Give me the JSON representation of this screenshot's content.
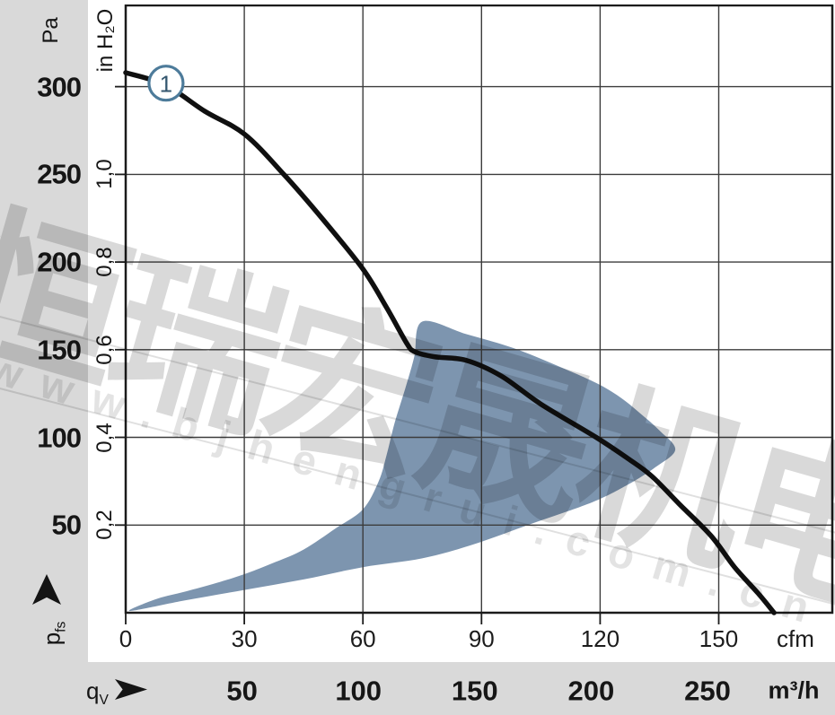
{
  "y_axis": {
    "unit_primary": "Pa",
    "ticks_pa": [
      "300",
      "250",
      "200",
      "150",
      "100",
      "50"
    ],
    "unit_secondary": "in H₂O",
    "ticks_inh2o": [
      "1,0",
      "0,8",
      "0,6",
      "0,4",
      "0,2"
    ],
    "quantity": {
      "base": "p",
      "sub": "fs"
    }
  },
  "x_axis": {
    "unit_primary": "cfm",
    "ticks_cfm": [
      "0",
      "30",
      "60",
      "90",
      "120",
      "150"
    ],
    "unit_secondary": "m³/h",
    "ticks_m3h": [
      "50",
      "100",
      "150",
      "200",
      "250"
    ],
    "quantity": {
      "base": "q",
      "sub": "V"
    }
  },
  "watermark": {
    "company": "恒瑞宏晟机电",
    "url": "www.bjhengrui.com.cn"
  },
  "chart_data": {
    "type": "line",
    "x_unit": "cfm",
    "x_unit_secondary": "m³/h",
    "y_unit": "Pa",
    "y_unit_secondary": "in H₂O",
    "x_range_cfm": [
      0,
      179
    ],
    "y_range_pa": [
      0,
      347
    ],
    "x_ticks_cfm": [
      0,
      30,
      60,
      90,
      120,
      150
    ],
    "x_ticks_m3h": [
      50,
      100,
      150,
      200,
      250
    ],
    "y_ticks_pa": [
      300,
      250,
      200,
      150,
      100,
      50
    ],
    "y_ticks_inh2o": [
      1.0,
      0.8,
      0.6,
      0.4,
      0.2
    ],
    "grid": true,
    "series": [
      {
        "name": "1",
        "points": [
          [
            0,
            308
          ],
          [
            10,
            301
          ],
          [
            20,
            286
          ],
          [
            30,
            273
          ],
          [
            40,
            250
          ],
          [
            50,
            224
          ],
          [
            60,
            196
          ],
          [
            66,
            174
          ],
          [
            71,
            154
          ],
          [
            73,
            149
          ],
          [
            78,
            146
          ],
          [
            86,
            144
          ],
          [
            95,
            135
          ],
          [
            105,
            119
          ],
          [
            119,
            100
          ],
          [
            127,
            88
          ],
          [
            133,
            78
          ],
          [
            140,
            62
          ],
          [
            148,
            44
          ],
          [
            154,
            26
          ],
          [
            160,
            11
          ],
          [
            164,
            0
          ]
        ]
      }
    ],
    "marker": {
      "label": "1",
      "at": [
        10.2,
        302
      ]
    },
    "operating_region_points": [
      [
        1,
        1
      ],
      [
        15,
        7
      ],
      [
        30,
        13
      ],
      [
        45,
        19
      ],
      [
        60,
        26
      ],
      [
        75,
        31
      ],
      [
        88,
        39
      ],
      [
        103,
        51
      ],
      [
        118,
        63
      ],
      [
        127,
        73
      ],
      [
        134,
        83
      ],
      [
        139,
        93
      ],
      [
        135,
        104
      ],
      [
        130,
        114
      ],
      [
        125,
        123
      ],
      [
        119,
        131
      ],
      [
        109,
        141
      ],
      [
        98,
        151
      ],
      [
        86,
        159
      ],
      [
        75,
        166
      ],
      [
        73,
        146
      ],
      [
        71,
        130
      ],
      [
        68,
        108
      ],
      [
        66,
        90
      ],
      [
        64,
        75
      ],
      [
        60,
        59
      ],
      [
        53,
        48
      ],
      [
        45,
        36
      ],
      [
        38,
        29
      ],
      [
        30,
        22
      ],
      [
        23,
        17
      ],
      [
        15,
        12
      ],
      [
        8,
        8
      ]
    ]
  },
  "colors": {
    "band_gray": "#d9d9d9",
    "region_blue": "#7d95af",
    "curve_black": "#101010",
    "grid": "#3c3c3c",
    "frame": "#1b1b1b",
    "marker_stroke": "#4d7b9a",
    "marker_text": "#34576f"
  }
}
